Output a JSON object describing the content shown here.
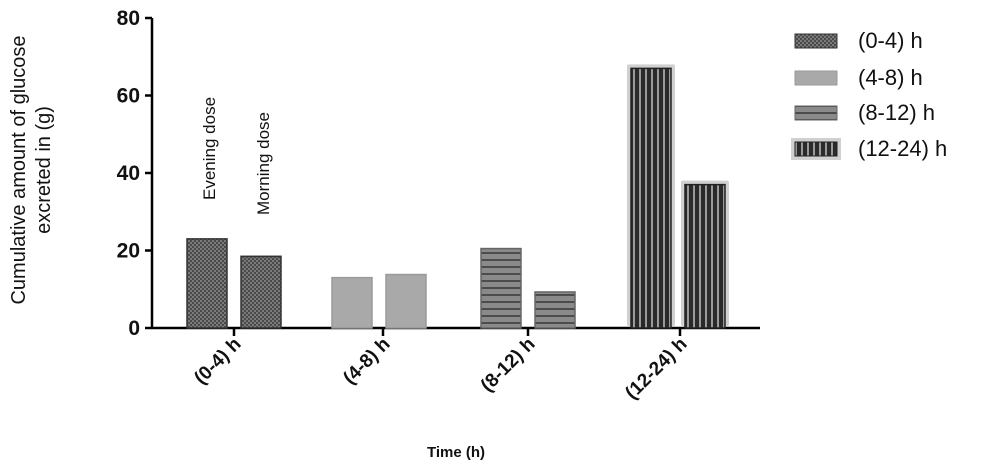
{
  "chart_data": {
    "type": "bar",
    "ylabel_line1": "Cumulative amount of glucose",
    "ylabel_line2": "excreted in (g)",
    "xlabel": "Time (h)",
    "ylim": [
      0,
      80
    ],
    "yticks": [
      0,
      20,
      40,
      60,
      80
    ],
    "categories": [
      "(0-4) h",
      "(4-8) h",
      "(8-12) h",
      "(12-24) h"
    ],
    "bars": [
      {
        "category": "(0-4) h",
        "dose": "Evening dose",
        "value": 23
      },
      {
        "category": "(0-4) h",
        "dose": "Morning dose",
        "value": 18.5
      },
      {
        "category": "(4-8) h",
        "dose": "Evening dose",
        "value": 13
      },
      {
        "category": "(4-8) h",
        "dose": "Morning dose",
        "value": 13.8
      },
      {
        "category": "(8-12) h",
        "dose": "Evening dose",
        "value": 20.5
      },
      {
        "category": "(8-12) h",
        "dose": "Morning dose",
        "value": 9.3
      },
      {
        "category": "(12-24) h",
        "dose": "Evening dose",
        "value": 67
      },
      {
        "category": "(12-24) h",
        "dose": "Morning dose",
        "value": 37
      }
    ],
    "annotations": [
      "Evening dose",
      "Morning dose"
    ],
    "legend": [
      "(0-4) h",
      "(4-8) h",
      "(8-12) h",
      "(12-24) h"
    ],
    "legend_position": "top-right",
    "grid": false
  }
}
